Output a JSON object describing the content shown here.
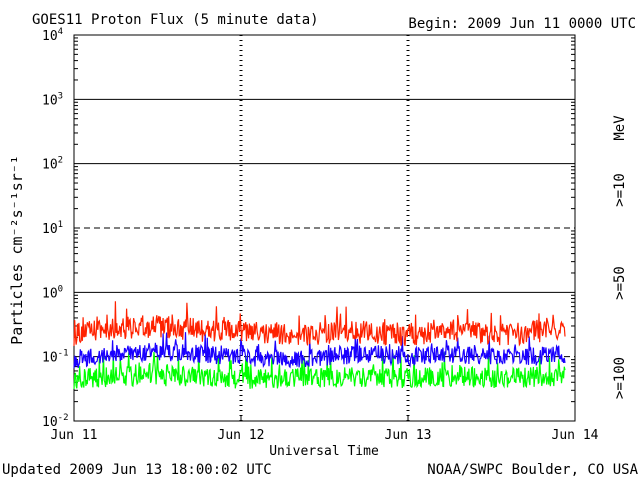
{
  "title": "GOES11 Proton Flux (5 minute data)",
  "begin": "Begin: 2009 Jun 11 0000 UTC",
  "updated": "Updated 2009 Jun 13 18:00:02 UTC",
  "credit": "NOAA/SWPC Boulder, CO USA",
  "colors": {
    ">=10": "#ff2200",
    ">=50": "#1a00ff",
    ">=100": "#00ff00"
  },
  "chart_data": {
    "type": "line",
    "title": "GOES11 Proton Flux (5 minute data)",
    "xlabel": "Universal Time",
    "ylabel": "Particles cm⁻²s⁻¹sr⁻¹",
    "yscale": "log",
    "ylim": [
      0.01,
      10000
    ],
    "xlim": [
      0,
      3
    ],
    "x_ticks": [
      "Jun 11",
      "Jun 12",
      "Jun 13",
      "Jun 14"
    ],
    "y_ticks": [
      {
        "base": "10",
        "exp": "4"
      },
      {
        "base": "10",
        "exp": "3"
      },
      {
        "base": "10",
        "exp": "2"
      },
      {
        "base": "10",
        "exp": "1"
      },
      {
        "base": "10",
        "exp": "0"
      },
      {
        "base": "10",
        "exp": "-1"
      },
      {
        "base": "10",
        "exp": "-2"
      }
    ],
    "energy_unit": "MeV",
    "series": [
      {
        "name": ">=10",
        "color": "#ff2200",
        "x": [
          0,
          0.25,
          0.5,
          0.75,
          1.0,
          1.25,
          1.5,
          1.75,
          2.0,
          2.25,
          2.5,
          2.75,
          2.94
        ],
        "values": [
          0.22,
          0.28,
          0.3,
          0.26,
          0.24,
          0.22,
          0.23,
          0.24,
          0.22,
          0.26,
          0.22,
          0.24,
          0.26
        ]
      },
      {
        "name": ">=50",
        "color": "#1a00ff",
        "x": [
          0,
          0.25,
          0.5,
          0.75,
          1.0,
          1.25,
          1.5,
          1.75,
          2.0,
          2.25,
          2.5,
          2.75,
          2.94
        ],
        "values": [
          0.09,
          0.11,
          0.12,
          0.11,
          0.1,
          0.09,
          0.1,
          0.11,
          0.1,
          0.11,
          0.1,
          0.1,
          0.11
        ]
      },
      {
        "name": ">=100",
        "color": "#00ff00",
        "x": [
          0,
          0.25,
          0.5,
          0.75,
          1.0,
          1.25,
          1.5,
          1.75,
          2.0,
          2.25,
          2.5,
          2.75,
          2.94
        ],
        "values": [
          0.045,
          0.05,
          0.05,
          0.048,
          0.045,
          0.046,
          0.047,
          0.048,
          0.046,
          0.05,
          0.047,
          0.048,
          0.05
        ]
      }
    ]
  }
}
